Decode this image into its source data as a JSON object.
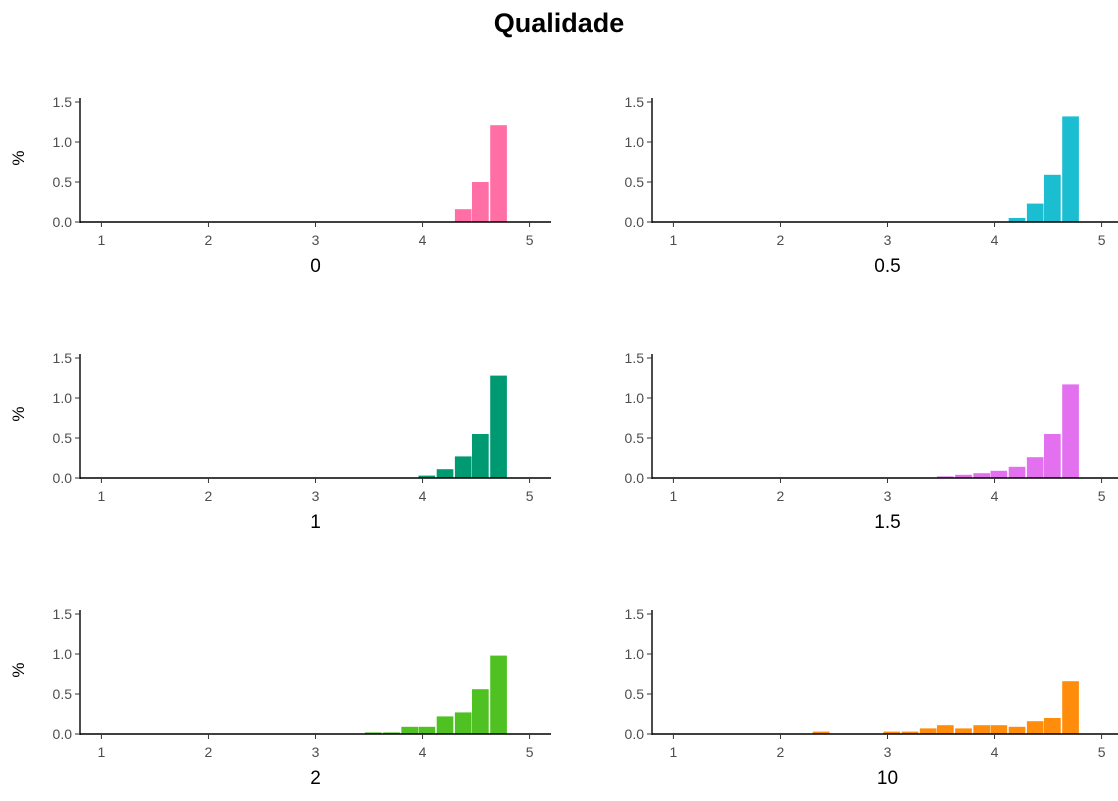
{
  "title": "Qualidade",
  "colors": {
    "panel_0": "#FF6EA4",
    "panel_0_5": "#1BBDD1",
    "panel_1": "#009A72",
    "panel_1_5": "#E270EF",
    "panel_2": "#4FC122",
    "panel_10": "#FF8C0A"
  },
  "chart_data": [
    {
      "type": "bar",
      "xlabel": "0",
      "ylabel": "%",
      "xlim": [
        0.8,
        5.2
      ],
      "ylim": [
        0,
        1.5
      ],
      "xticks": [
        "1",
        "2",
        "3",
        "4",
        "5"
      ],
      "yticks": [
        "0.0",
        "0.5",
        "1.0",
        "1.5"
      ],
      "color": "#FF6EA4",
      "bin_width": 0.167,
      "x": [
        4.38,
        4.54,
        4.71
      ],
      "values": [
        0.16,
        0.5,
        1.21
      ]
    },
    {
      "type": "bar",
      "xlabel": "0.5",
      "ylabel": "",
      "xlim": [
        0.8,
        5.2
      ],
      "ylim": [
        0,
        1.5
      ],
      "xticks": [
        "1",
        "2",
        "3",
        "4",
        "5"
      ],
      "yticks": [
        "0.0",
        "0.5",
        "1.0",
        "1.5"
      ],
      "color": "#1BBDD1",
      "bin_width": 0.167,
      "x": [
        4.21,
        4.38,
        4.54,
        4.71
      ],
      "values": [
        0.05,
        0.23,
        0.59,
        1.32
      ]
    },
    {
      "type": "bar",
      "xlabel": "1",
      "ylabel": "%",
      "xlim": [
        0.8,
        5.2
      ],
      "ylim": [
        0,
        1.5
      ],
      "xticks": [
        "1",
        "2",
        "3",
        "4",
        "5"
      ],
      "yticks": [
        "0.0",
        "0.5",
        "1.0",
        "1.5"
      ],
      "color": "#009A72",
      "bin_width": 0.167,
      "x": [
        4.04,
        4.21,
        4.38,
        4.54,
        4.71
      ],
      "values": [
        0.03,
        0.11,
        0.27,
        0.55,
        1.28
      ]
    },
    {
      "type": "bar",
      "xlabel": "1.5",
      "ylabel": "",
      "xlim": [
        0.8,
        5.2
      ],
      "ylim": [
        0,
        1.5
      ],
      "xticks": [
        "1",
        "2",
        "3",
        "4",
        "5"
      ],
      "yticks": [
        "0.0",
        "0.5",
        "1.0",
        "1.5"
      ],
      "color": "#E270EF",
      "bin_width": 0.167,
      "x": [
        3.54,
        3.71,
        3.88,
        4.04,
        4.21,
        4.38,
        4.54,
        4.71
      ],
      "values": [
        0.02,
        0.04,
        0.06,
        0.09,
        0.14,
        0.26,
        0.55,
        1.17
      ]
    },
    {
      "type": "bar",
      "xlabel": "2",
      "ylabel": "%",
      "xlim": [
        0.8,
        5.2
      ],
      "ylim": [
        0,
        1.5
      ],
      "xticks": [
        "1",
        "2",
        "3",
        "4",
        "5"
      ],
      "yticks": [
        "0.0",
        "0.5",
        "1.0",
        "1.5"
      ],
      "color": "#4FC122",
      "bin_width": 0.167,
      "x": [
        3.54,
        3.71,
        3.88,
        4.04,
        4.21,
        4.38,
        4.54,
        4.71
      ],
      "values": [
        0.02,
        0.02,
        0.09,
        0.09,
        0.22,
        0.27,
        0.56,
        0.98
      ]
    },
    {
      "type": "bar",
      "xlabel": "10",
      "ylabel": "",
      "xlim": [
        0.8,
        5.2
      ],
      "ylim": [
        0,
        1.5
      ],
      "xticks": [
        "1",
        "2",
        "3",
        "4",
        "5"
      ],
      "yticks": [
        "0.0",
        "0.5",
        "1.0",
        "1.5"
      ],
      "color": "#FF8C0A",
      "bin_width": 0.167,
      "x": [
        2.38,
        3.04,
        3.21,
        3.38,
        3.54,
        3.71,
        3.88,
        4.04,
        4.21,
        4.38,
        4.54,
        4.71
      ],
      "values": [
        0.03,
        0.03,
        0.03,
        0.07,
        0.11,
        0.07,
        0.11,
        0.11,
        0.09,
        0.16,
        0.2,
        0.66
      ]
    }
  ]
}
